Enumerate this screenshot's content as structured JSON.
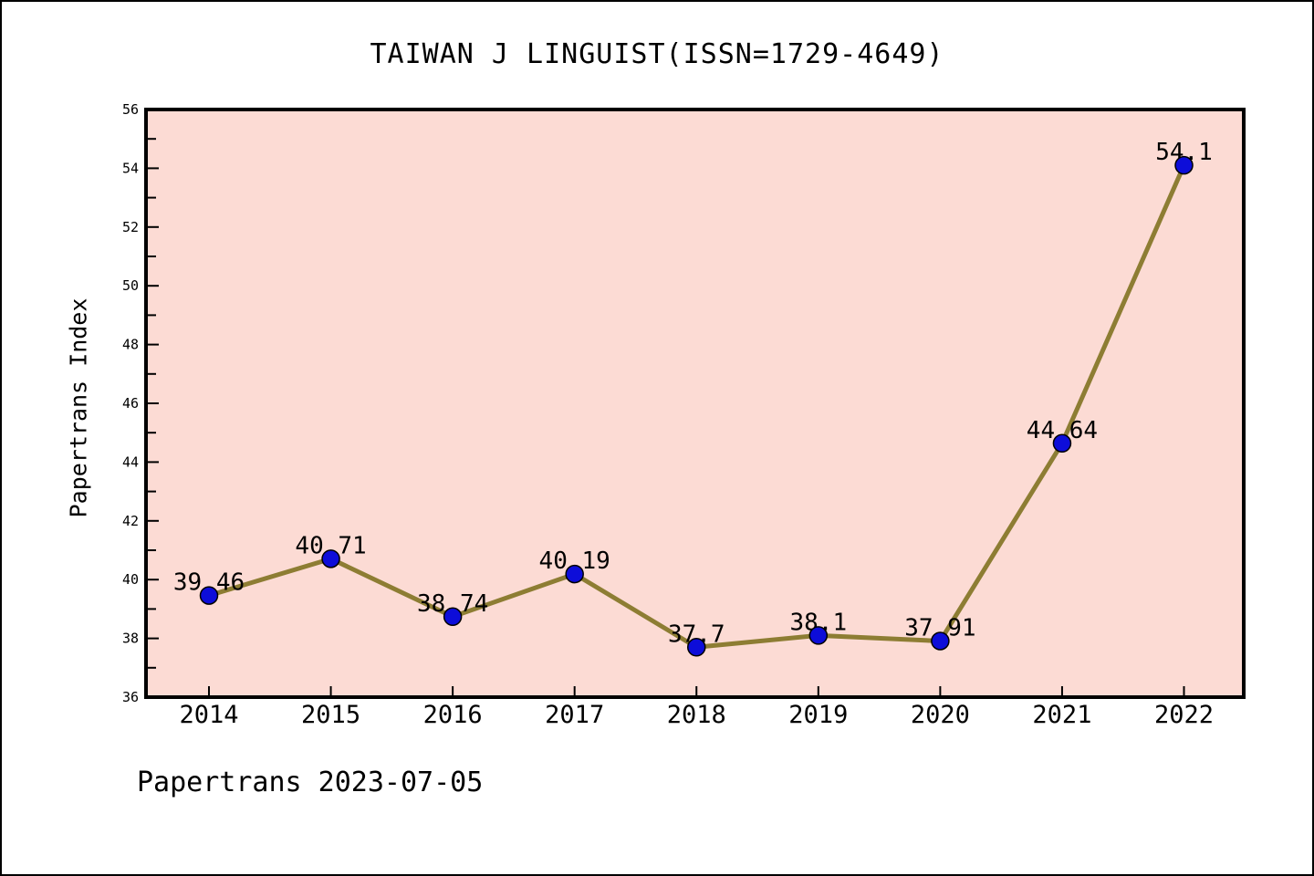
{
  "header": {
    "title": "TAIWAN J LINGUIST(ISSN=1729-4649)"
  },
  "footer": {
    "text": "Papertrans 2023-07-05"
  },
  "chart_data": {
    "type": "line",
    "title": "TAIWAN J LINGUIST(ISSN=1729-4649)",
    "xlabel": "",
    "ylabel": "Papertrans Index",
    "categories": [
      "2014",
      "2015",
      "2016",
      "2017",
      "2018",
      "2019",
      "2020",
      "2021",
      "2022"
    ],
    "series": [
      {
        "name": "Papertrans Index",
        "values": [
          39.46,
          40.71,
          38.74,
          40.19,
          37.7,
          38.1,
          37.91,
          44.64,
          54.1
        ]
      }
    ],
    "point_labels": [
      "39.46",
      "40.71",
      "38.74",
      "40.19",
      "37.7",
      "38.1",
      "37.91",
      "44.64",
      "54.1"
    ],
    "ylim": [
      36,
      56
    ],
    "ytick_step": 2,
    "yminor_step": 1,
    "ytick_labels": [
      "36",
      "38",
      "40",
      "42",
      "44",
      "46",
      "48",
      "50",
      "52",
      "54",
      "56"
    ],
    "grid": false,
    "legend": false,
    "marker": "circle",
    "tick_direction": "in",
    "colors": {
      "plot_bg": "#fcdbd4",
      "page_bg": "#ffffff",
      "line": "#8d7d33",
      "marker": "#0d0dd9",
      "marker_edge": "#000000",
      "spine": "#000000",
      "text": "#000000"
    }
  }
}
